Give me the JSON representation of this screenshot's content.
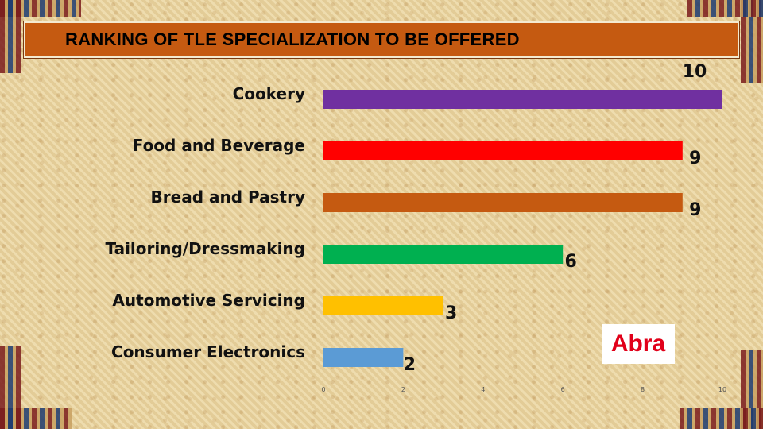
{
  "title": "RANKING OF TLE SPECIALIZATION TO BE OFFERED",
  "watermark": "Abra",
  "colors": {
    "title_bar": "#c55a11",
    "background": "#e8d3a0"
  },
  "chart_data": {
    "type": "bar",
    "orientation": "horizontal",
    "title": "RANKING OF TLE SPECIALIZATION TO BE OFFERED",
    "categories": [
      "Cookery",
      "Food and Beverage",
      "Bread and Pastry",
      "Tailoring/Dressmaking",
      "Automotive Servicing",
      "Consumer Electronics"
    ],
    "values": [
      10,
      9,
      9,
      6,
      3,
      2
    ],
    "bar_colors": [
      "#7030a0",
      "#ff0000",
      "#c55a11",
      "#00b050",
      "#ffc000",
      "#5b9bd5"
    ],
    "value_labels": [
      "10",
      "9",
      "9",
      "6",
      "3",
      "2"
    ],
    "xlim": [
      0,
      10
    ],
    "xticks": [
      "0",
      "2",
      "4",
      "6",
      "8",
      "10"
    ],
    "xlabel": "",
    "ylabel": "",
    "grid": false,
    "legend": "none"
  }
}
